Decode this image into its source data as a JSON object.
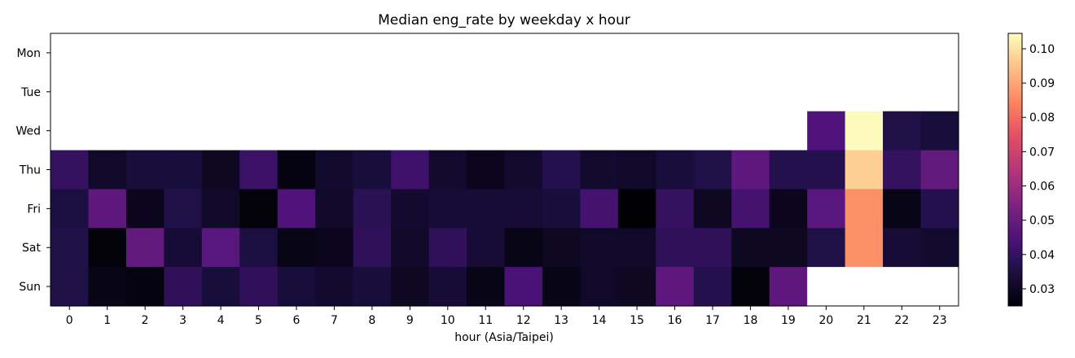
{
  "chart_data": {
    "type": "heatmap",
    "title": "Median eng_rate by weekday x hour",
    "xlabel": "hour (Asia/Taipei)",
    "ylabel": "",
    "x_categories": [
      "0",
      "1",
      "2",
      "3",
      "4",
      "5",
      "6",
      "7",
      "8",
      "9",
      "10",
      "11",
      "12",
      "13",
      "14",
      "15",
      "16",
      "17",
      "18",
      "19",
      "20",
      "21",
      "22",
      "23"
    ],
    "y_categories": [
      "Mon",
      "Tue",
      "Wed",
      "Thu",
      "Fri",
      "Sat",
      "Sun"
    ],
    "values": [
      [
        null,
        null,
        null,
        null,
        null,
        null,
        null,
        null,
        null,
        null,
        null,
        null,
        null,
        null,
        null,
        null,
        null,
        null,
        null,
        null,
        null,
        null,
        null,
        null
      ],
      [
        null,
        null,
        null,
        null,
        null,
        null,
        null,
        null,
        null,
        null,
        null,
        null,
        null,
        null,
        null,
        null,
        null,
        null,
        null,
        null,
        null,
        null,
        null,
        null
      ],
      [
        null,
        null,
        null,
        null,
        null,
        null,
        null,
        null,
        null,
        null,
        null,
        null,
        null,
        null,
        null,
        null,
        null,
        null,
        null,
        null,
        0.045,
        0.104,
        0.036,
        0.034
      ],
      [
        0.04,
        0.031,
        0.034,
        0.034,
        0.03,
        0.041,
        0.027,
        0.032,
        0.034,
        0.042,
        0.032,
        0.029,
        0.032,
        0.037,
        0.032,
        0.031,
        0.034,
        0.036,
        0.048,
        0.037,
        0.037,
        0.097,
        0.04,
        0.049
      ],
      [
        0.035,
        0.048,
        0.029,
        0.036,
        0.031,
        0.026,
        0.045,
        0.031,
        0.038,
        0.032,
        0.033,
        0.033,
        0.033,
        0.034,
        0.043,
        0.024,
        0.04,
        0.03,
        0.043,
        0.029,
        0.047,
        0.086,
        0.028,
        0.037
      ],
      [
        0.036,
        0.026,
        0.049,
        0.033,
        0.047,
        0.035,
        0.028,
        0.029,
        0.039,
        0.031,
        0.039,
        0.033,
        0.028,
        0.03,
        0.031,
        0.031,
        0.039,
        0.039,
        0.03,
        0.03,
        0.036,
        0.086,
        0.033,
        0.032
      ],
      [
        0.036,
        0.028,
        0.027,
        0.039,
        0.034,
        0.039,
        0.034,
        0.032,
        0.034,
        0.03,
        0.033,
        0.028,
        0.044,
        0.028,
        0.031,
        0.03,
        0.048,
        0.037,
        0.026,
        0.048,
        null,
        null,
        null,
        null
      ]
    ],
    "colorbar": {
      "colormap": "magma",
      "vmin": 0.025,
      "vmax": 0.1045,
      "ticks": [
        "0.03",
        "0.04",
        "0.05",
        "0.06",
        "0.07",
        "0.08",
        "0.09",
        "0.10"
      ]
    },
    "missing_color": "#ffffff"
  }
}
